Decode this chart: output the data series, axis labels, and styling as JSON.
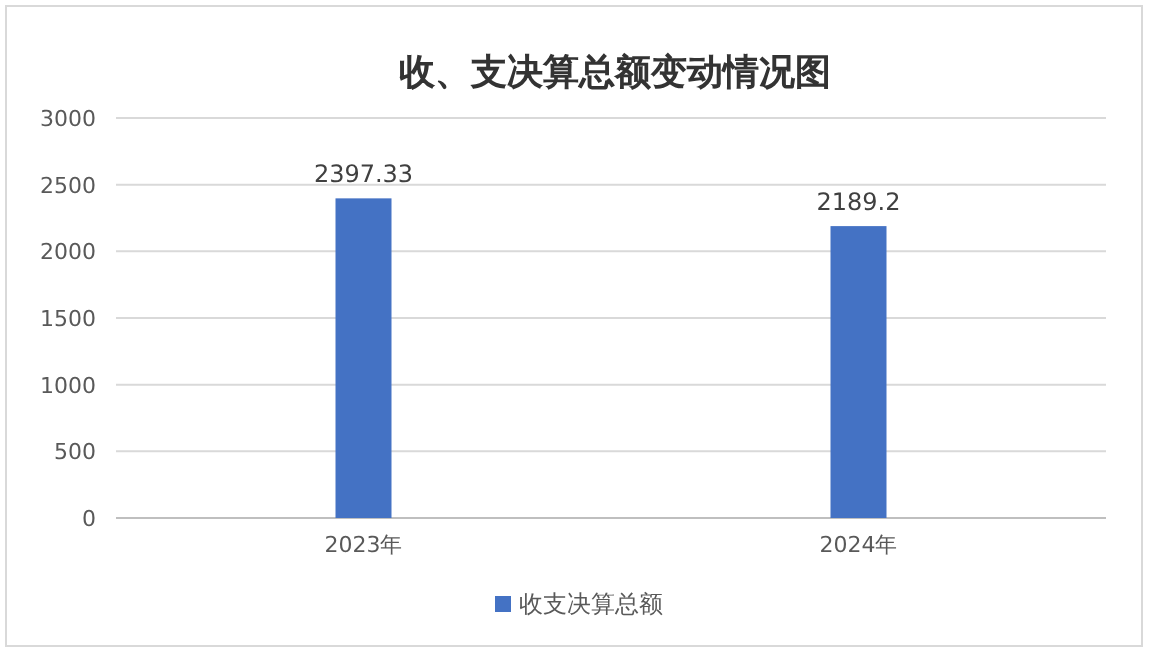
{
  "chart_data": {
    "type": "bar",
    "title": "收、支决算总额变动情况图",
    "categories": [
      "2023年",
      "2024年"
    ],
    "series": [
      {
        "name": "收支决算总额",
        "color": "#4472c4",
        "values": [
          2397.33,
          2189.2
        ]
      }
    ],
    "ylim": [
      0,
      3000
    ],
    "yticks": [
      0,
      500,
      1000,
      1500,
      2000,
      2500,
      3000
    ],
    "grid": "y",
    "data_labels": true,
    "legend": "bottom"
  }
}
